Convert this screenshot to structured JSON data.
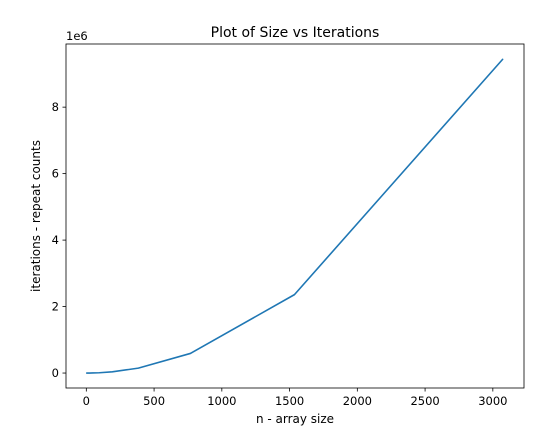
{
  "chart_data": {
    "type": "line",
    "title": "Plot of Size vs Iterations",
    "xlabel": "n - array size",
    "ylabel": "iterations - repeat counts",
    "y_offset_label": "1e6",
    "xlim": [
      -150,
      3230
    ],
    "ylim": [
      -450000,
      9900000
    ],
    "x_ticks": [
      0,
      500,
      1000,
      1500,
      2000,
      2500,
      3000
    ],
    "x_tick_labels": [
      "0",
      "500",
      "1000",
      "1500",
      "2000",
      "2500",
      "3000"
    ],
    "y_ticks": [
      0,
      2000000,
      4000000,
      6000000,
      8000000
    ],
    "y_tick_labels": [
      "0",
      "2",
      "4",
      "6",
      "8"
    ],
    "grid": false,
    "series": [
      {
        "color": "#1f77b4",
        "x": [
          3,
          6,
          12,
          24,
          48,
          96,
          192,
          384,
          768,
          1536,
          3072
        ],
        "y": [
          9,
          36,
          144,
          576,
          2304,
          9216,
          36864,
          147456,
          589824,
          2359296,
          9437184
        ]
      }
    ]
  }
}
